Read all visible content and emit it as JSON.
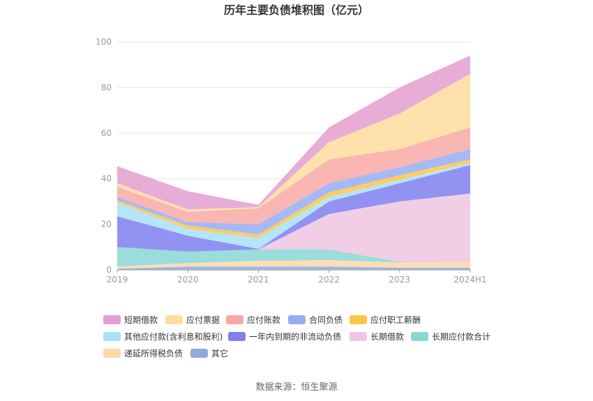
{
  "chart_data": {
    "type": "area",
    "stacked": true,
    "title": "历年主要负债堆积图（亿元）",
    "source": "数据来源：恒生聚源",
    "categories": [
      "2019",
      "2020",
      "2021",
      "2022",
      "2023",
      "2024H1"
    ],
    "ylim": [
      0,
      100
    ],
    "yticks": [
      0,
      20,
      40,
      60,
      80,
      100
    ],
    "grid": true,
    "legend_position": "bottom",
    "series": [
      {
        "name": "其它",
        "color": "#8faadc",
        "values": [
          0.5,
          1.5,
          1.5,
          1.5,
          1.0,
          1.0
        ]
      },
      {
        "name": "递延所得税负债",
        "color": "#ffd8a8",
        "values": [
          1.0,
          1.5,
          2.5,
          2.8,
          2.3,
          2.5
        ]
      },
      {
        "name": "长期应付款合计",
        "color": "#8ad6d6",
        "values": [
          8.5,
          5.0,
          5.0,
          4.7,
          0.2,
          0.0
        ]
      },
      {
        "name": "长期借款",
        "color": "#efc5e0",
        "values": [
          0.0,
          0.0,
          0.0,
          15.5,
          26.5,
          30.0
        ]
      },
      {
        "name": "一年内到期的非流动负债",
        "color": "#7f7ff0",
        "values": [
          13.5,
          7.0,
          0.2,
          5.5,
          8.0,
          12.5
        ]
      },
      {
        "name": "其他应付款(含利息和股利)",
        "color": "#a7e1f7",
        "values": [
          6.0,
          3.0,
          4.8,
          2.0,
          1.5,
          1.0
        ]
      },
      {
        "name": "应付职工薪酬",
        "color": "#ffc547",
        "values": [
          1.0,
          1.5,
          1.5,
          2.0,
          2.0,
          1.5
        ]
      },
      {
        "name": "合同负债",
        "color": "#95adf5",
        "values": [
          1.5,
          1.5,
          4.5,
          4.0,
          3.5,
          4.5
        ]
      },
      {
        "name": "应付账款",
        "color": "#f9a9a5",
        "values": [
          4.5,
          4.5,
          7.0,
          10.5,
          8.0,
          9.5
        ]
      },
      {
        "name": "应付票据",
        "color": "#ffdca0",
        "values": [
          1.5,
          1.0,
          0.5,
          7.5,
          15.5,
          23.5
        ]
      },
      {
        "name": "短期借款",
        "color": "#e39fd0",
        "values": [
          7.5,
          8.0,
          1.0,
          6.5,
          11.5,
          8.0
        ]
      }
    ],
    "legend_order": [
      "短期借款",
      "应付票据",
      "应付账款",
      "合同负债",
      "应付职工薪酬",
      "其他应付款(含利息和股利)",
      "一年内到期的非流动负债",
      "长期借款",
      "长期应付款合计",
      "递延所得税负债",
      "其它"
    ]
  }
}
